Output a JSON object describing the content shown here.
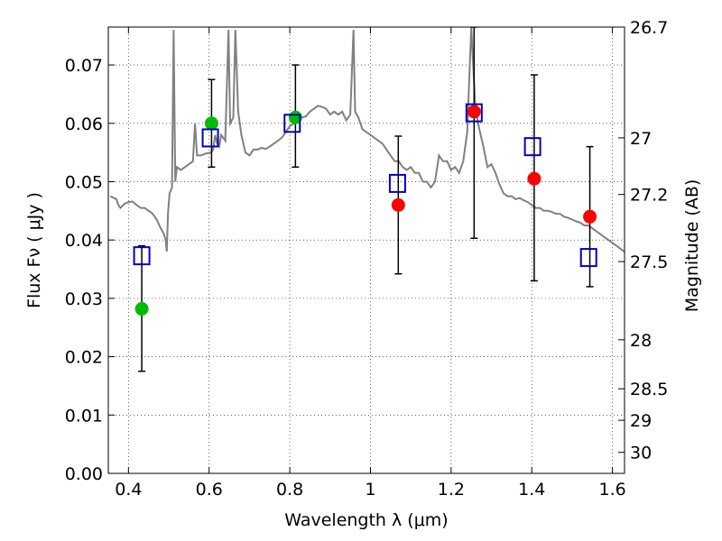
{
  "chart_data": {
    "type": "scatter",
    "xlabel": "Wavelength  λ (μm)",
    "ylabel": "Flux  Fν  ( μJy )",
    "ylabel_right": "Magnitude (AB)",
    "xlim": [
      0.35,
      1.63
    ],
    "ylim": [
      0.0,
      0.0765
    ],
    "x_ticks": [
      0.4,
      0.6,
      0.8,
      1.0,
      1.2,
      1.4,
      1.6
    ],
    "x_tick_labels": [
      "0.4",
      "0.6",
      "0.8",
      "1",
      "1.2",
      "1.4",
      "1.6"
    ],
    "y_ticks": [
      0.0,
      0.01,
      0.02,
      0.03,
      0.04,
      0.05,
      0.06,
      0.07
    ],
    "y_tick_labels": [
      "0.00",
      "0.01",
      "0.02",
      "0.03",
      "0.04",
      "0.05",
      "0.06",
      "0.07"
    ],
    "right_ticks": [
      {
        "label": "26.7",
        "flux": 0.0765
      },
      {
        "label": "27",
        "flux": 0.0575
      },
      {
        "label": "27.2",
        "flux": 0.0478
      },
      {
        "label": "27.5",
        "flux": 0.0363
      },
      {
        "label": "28",
        "flux": 0.0229
      },
      {
        "label": "28.5",
        "flux": 0.0145
      },
      {
        "label": "29",
        "flux": 0.0091
      },
      {
        "label": "30",
        "flux": 0.0036
      }
    ],
    "grid": true,
    "series": [
      {
        "kind": "line",
        "color": "#808080",
        "points": [
          [
            0.355,
            0.0475
          ],
          [
            0.37,
            0.047
          ],
          [
            0.375,
            0.046
          ],
          [
            0.38,
            0.0455
          ],
          [
            0.39,
            0.0462
          ],
          [
            0.4,
            0.0465
          ],
          [
            0.41,
            0.0466
          ],
          [
            0.42,
            0.046
          ],
          [
            0.43,
            0.0455
          ],
          [
            0.44,
            0.0455
          ],
          [
            0.45,
            0.045
          ],
          [
            0.46,
            0.0445
          ],
          [
            0.47,
            0.0435
          ],
          [
            0.48,
            0.042
          ],
          [
            0.488,
            0.041
          ],
          [
            0.492,
            0.04
          ],
          [
            0.495,
            0.038
          ],
          [
            0.498,
            0.0445
          ],
          [
            0.502,
            0.048
          ],
          [
            0.508,
            0.049
          ],
          [
            0.512,
            0.076
          ],
          [
            0.516,
            0.05
          ],
          [
            0.52,
            0.0525
          ],
          [
            0.53,
            0.052
          ],
          [
            0.54,
            0.0525
          ],
          [
            0.55,
            0.053
          ],
          [
            0.56,
            0.0535
          ],
          [
            0.565,
            0.06
          ],
          [
            0.57,
            0.0545
          ],
          [
            0.58,
            0.0545
          ],
          [
            0.59,
            0.0548
          ],
          [
            0.605,
            0.055
          ],
          [
            0.61,
            0.0555
          ],
          [
            0.615,
            0.058
          ],
          [
            0.62,
            0.0565
          ],
          [
            0.625,
            0.056
          ],
          [
            0.63,
            0.058
          ],
          [
            0.64,
            0.057
          ],
          [
            0.648,
            0.076
          ],
          [
            0.652,
            0.06
          ],
          [
            0.66,
            0.061
          ],
          [
            0.665,
            0.076
          ],
          [
            0.672,
            0.062
          ],
          [
            0.68,
            0.058
          ],
          [
            0.69,
            0.055
          ],
          [
            0.7,
            0.0545
          ],
          [
            0.71,
            0.0555
          ],
          [
            0.72,
            0.0555
          ],
          [
            0.73,
            0.0558
          ],
          [
            0.74,
            0.0556
          ],
          [
            0.75,
            0.056
          ],
          [
            0.76,
            0.0565
          ],
          [
            0.77,
            0.057
          ],
          [
            0.78,
            0.0575
          ],
          [
            0.79,
            0.0585
          ],
          [
            0.8,
            0.0595
          ],
          [
            0.81,
            0.06
          ],
          [
            0.82,
            0.0605
          ],
          [
            0.83,
            0.061
          ],
          [
            0.84,
            0.0612
          ],
          [
            0.85,
            0.062
          ],
          [
            0.86,
            0.0625
          ],
          [
            0.87,
            0.063
          ],
          [
            0.88,
            0.0628
          ],
          [
            0.89,
            0.0625
          ],
          [
            0.9,
            0.0615
          ],
          [
            0.91,
            0.062
          ],
          [
            0.92,
            0.0615
          ],
          [
            0.93,
            0.062
          ],
          [
            0.94,
            0.0605
          ],
          [
            0.95,
            0.0615
          ],
          [
            0.958,
            0.076
          ],
          [
            0.962,
            0.062
          ],
          [
            0.97,
            0.061
          ],
          [
            0.98,
            0.059
          ],
          [
            0.99,
            0.0585
          ],
          [
            1.0,
            0.058
          ],
          [
            1.01,
            0.0575
          ],
          [
            1.02,
            0.057
          ],
          [
            1.03,
            0.0565
          ],
          [
            1.04,
            0.0555
          ],
          [
            1.05,
            0.0545
          ],
          [
            1.06,
            0.0535
          ],
          [
            1.07,
            0.0535
          ],
          [
            1.08,
            0.0525
          ],
          [
            1.09,
            0.052
          ],
          [
            1.1,
            0.0525
          ],
          [
            1.11,
            0.0515
          ],
          [
            1.12,
            0.0515
          ],
          [
            1.13,
            0.05
          ],
          [
            1.14,
            0.05
          ],
          [
            1.15,
            0.049
          ],
          [
            1.16,
            0.05
          ],
          [
            1.17,
            0.0545
          ],
          [
            1.18,
            0.0535
          ],
          [
            1.19,
            0.0535
          ],
          [
            1.2,
            0.052
          ],
          [
            1.21,
            0.0525
          ],
          [
            1.22,
            0.0515
          ],
          [
            1.23,
            0.0535
          ],
          [
            1.24,
            0.0585
          ],
          [
            1.25,
            0.0765
          ],
          [
            1.26,
            0.0625
          ],
          [
            1.27,
            0.059
          ],
          [
            1.28,
            0.056
          ],
          [
            1.29,
            0.0525
          ],
          [
            1.3,
            0.053
          ],
          [
            1.31,
            0.0515
          ],
          [
            1.32,
            0.0495
          ],
          [
            1.33,
            0.048
          ],
          [
            1.34,
            0.0475
          ],
          [
            1.35,
            0.0475
          ],
          [
            1.36,
            0.047
          ],
          [
            1.37,
            0.0472
          ],
          [
            1.38,
            0.0468
          ],
          [
            1.39,
            0.0465
          ],
          [
            1.4,
            0.046
          ],
          [
            1.41,
            0.0455
          ],
          [
            1.42,
            0.0455
          ],
          [
            1.43,
            0.045
          ],
          [
            1.44,
            0.045
          ],
          [
            1.45,
            0.0448
          ],
          [
            1.46,
            0.0445
          ],
          [
            1.47,
            0.0445
          ],
          [
            1.48,
            0.044
          ],
          [
            1.49,
            0.0438
          ],
          [
            1.5,
            0.0435
          ],
          [
            1.51,
            0.0432
          ],
          [
            1.52,
            0.043
          ],
          [
            1.53,
            0.0425
          ],
          [
            1.54,
            0.0425
          ],
          [
            1.55,
            0.042
          ],
          [
            1.56,
            0.0415
          ],
          [
            1.57,
            0.041
          ],
          [
            1.58,
            0.0405
          ],
          [
            1.59,
            0.04
          ],
          [
            1.6,
            0.0395
          ],
          [
            1.61,
            0.039
          ],
          [
            1.62,
            0.0385
          ],
          [
            1.63,
            0.038
          ]
        ]
      },
      {
        "kind": "errorbar",
        "color": "#000000",
        "points": [
          {
            "x": 0.433,
            "y": 0.0282,
            "lo": 0.0175,
            "hi": 0.039
          },
          {
            "x": 0.606,
            "y": 0.06,
            "lo": 0.0525,
            "hi": 0.0675
          },
          {
            "x": 0.814,
            "y": 0.061,
            "lo": 0.0525,
            "hi": 0.07
          },
          {
            "x": 1.069,
            "y": 0.046,
            "lo": 0.0342,
            "hi": 0.0578
          },
          {
            "x": 1.257,
            "y": 0.062,
            "lo": 0.0403,
            "hi": 0.0765
          },
          {
            "x": 1.406,
            "y": 0.0505,
            "lo": 0.033,
            "hi": 0.0683
          },
          {
            "x": 1.544,
            "y": 0.044,
            "lo": 0.032,
            "hi": 0.056
          }
        ]
      },
      {
        "kind": "circle",
        "color": "#00bb00",
        "points": [
          [
            0.433,
            0.0282
          ],
          [
            0.606,
            0.06
          ],
          [
            0.814,
            0.061
          ]
        ]
      },
      {
        "kind": "circle",
        "color": "#ff0000",
        "points": [
          [
            1.069,
            0.046
          ],
          [
            1.257,
            0.062
          ],
          [
            1.406,
            0.0505
          ],
          [
            1.544,
            0.044
          ]
        ]
      },
      {
        "kind": "square",
        "color": "#0000cc",
        "points": [
          [
            0.433,
            0.0373
          ],
          [
            0.603,
            0.0575
          ],
          [
            0.806,
            0.06
          ],
          [
            1.067,
            0.0497
          ],
          [
            1.257,
            0.0618
          ],
          [
            1.402,
            0.056
          ],
          [
            1.541,
            0.037
          ]
        ]
      }
    ]
  }
}
